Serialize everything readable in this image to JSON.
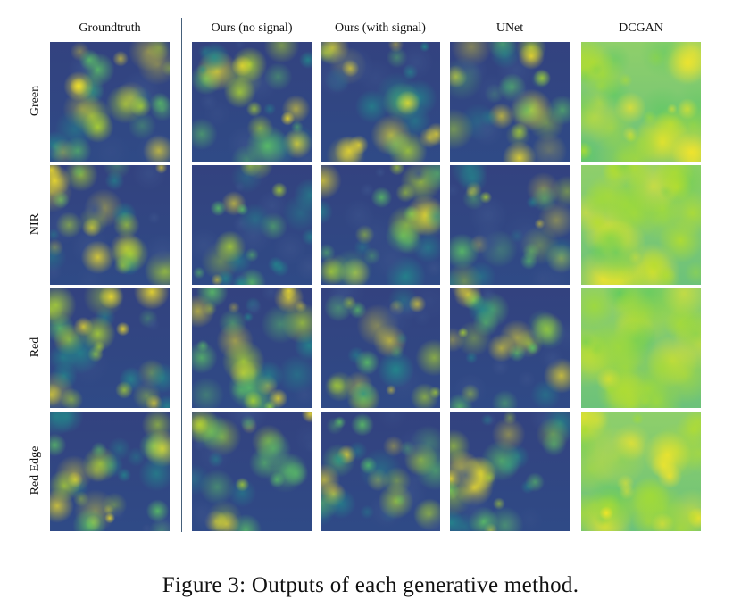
{
  "figure": {
    "columns": [
      "Groundtruth",
      "Ours (no signal)",
      "Ours (with signal)",
      "UNet",
      "DCGAN"
    ],
    "rows": [
      "Green",
      "NIR",
      "Red",
      "Red Edge"
    ],
    "caption": "Figure 3: Outputs of each generative method."
  }
}
